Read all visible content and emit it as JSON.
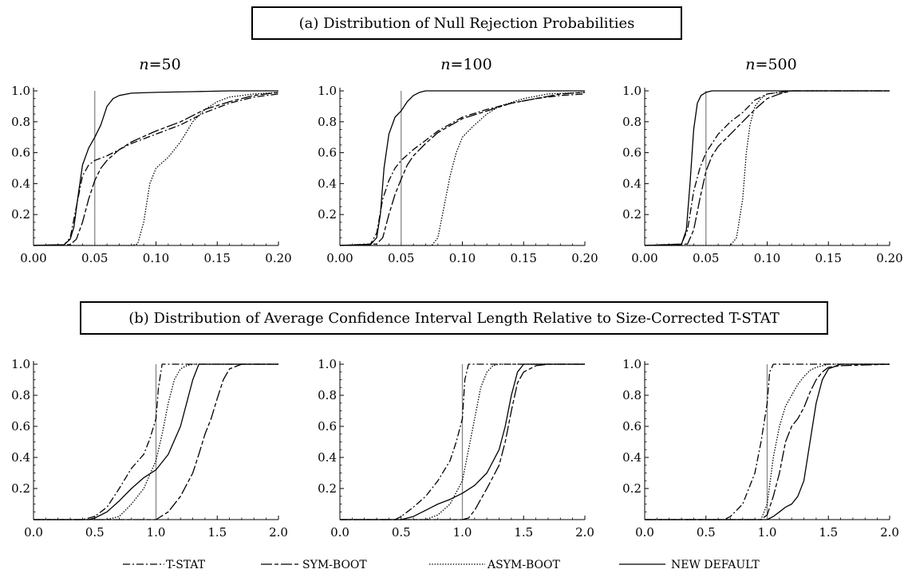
{
  "panel_a_title": "(a) Distribution of Null Rejection Probabilities",
  "panel_b_title": "(b) Distribution of Average Confidence Interval Length Relative to Size-Corrected T-STAT",
  "legend": [
    {
      "label": "T-STAT",
      "style": "dashdot"
    },
    {
      "label": "SYM-BOOT",
      "style": "longdash"
    },
    {
      "label": "ASYM-BOOT",
      "style": "dotted"
    },
    {
      "label": "NEW DEFAULT",
      "style": "solid"
    }
  ],
  "chart_data": [
    {
      "type": "line",
      "panel": "a",
      "title_var": "n",
      "title_value": "=50",
      "xlim": [
        0,
        0.2
      ],
      "ylim": [
        0,
        1
      ],
      "xticks": [
        "0.00",
        "0.05",
        "0.10",
        "0.15",
        "0.20"
      ],
      "yticks": [
        "0.2",
        "0.4",
        "0.6",
        "0.8",
        "1.0"
      ],
      "vline": 0.05,
      "series": [
        {
          "name": "NEW DEFAULT",
          "x": [
            0,
            0.025,
            0.03,
            0.033,
            0.036,
            0.04,
            0.045,
            0.05,
            0.055,
            0.06,
            0.065,
            0.07,
            0.08,
            0.1,
            0.13,
            0.16,
            0.2
          ],
          "y": [
            0,
            0.005,
            0.04,
            0.12,
            0.3,
            0.52,
            0.63,
            0.7,
            0.78,
            0.9,
            0.95,
            0.97,
            0.985,
            0.99,
            0.995,
            1,
            1
          ]
        },
        {
          "name": "T-STAT",
          "x": [
            0,
            0.025,
            0.03,
            0.035,
            0.04,
            0.045,
            0.05,
            0.06,
            0.07,
            0.08,
            0.1,
            0.12,
            0.14,
            0.16,
            0.18,
            0.2
          ],
          "y": [
            0,
            0.005,
            0.05,
            0.25,
            0.45,
            0.52,
            0.55,
            0.58,
            0.62,
            0.66,
            0.72,
            0.78,
            0.86,
            0.92,
            0.96,
            0.98
          ]
        },
        {
          "name": "SYM-BOOT",
          "x": [
            0,
            0.03,
            0.035,
            0.04,
            0.045,
            0.05,
            0.055,
            0.06,
            0.07,
            0.08,
            0.1,
            0.12,
            0.14,
            0.16,
            0.18,
            0.2
          ],
          "y": [
            0,
            0.005,
            0.04,
            0.15,
            0.3,
            0.42,
            0.5,
            0.55,
            0.62,
            0.67,
            0.74,
            0.8,
            0.88,
            0.93,
            0.97,
            0.99
          ]
        },
        {
          "name": "ASYM-BOOT",
          "x": [
            0,
            0.08,
            0.085,
            0.09,
            0.095,
            0.1,
            0.11,
            0.12,
            0.13,
            0.14,
            0.15,
            0.16,
            0.18,
            0.2
          ],
          "y": [
            0,
            0,
            0.01,
            0.15,
            0.4,
            0.5,
            0.57,
            0.67,
            0.8,
            0.88,
            0.93,
            0.96,
            0.98,
            0.99
          ]
        }
      ]
    },
    {
      "type": "line",
      "panel": "a",
      "title_var": "n",
      "title_value": "=100",
      "xlim": [
        0,
        0.2
      ],
      "ylim": [
        0,
        1
      ],
      "xticks": [
        "0.00",
        "0.05",
        "0.10",
        "0.15",
        "0.20"
      ],
      "yticks": [
        "0.2",
        "0.4",
        "0.6",
        "0.8",
        "1.0"
      ],
      "vline": 0.05,
      "series": [
        {
          "name": "NEW DEFAULT",
          "x": [
            0,
            0.025,
            0.03,
            0.033,
            0.036,
            0.04,
            0.045,
            0.05,
            0.055,
            0.06,
            0.065,
            0.07,
            0.08,
            0.1,
            0.2
          ],
          "y": [
            0,
            0.005,
            0.05,
            0.2,
            0.5,
            0.72,
            0.83,
            0.87,
            0.93,
            0.97,
            0.99,
            1,
            1,
            1,
            1
          ]
        },
        {
          "name": "T-STAT",
          "x": [
            0,
            0.025,
            0.03,
            0.035,
            0.04,
            0.045,
            0.05,
            0.06,
            0.07,
            0.08,
            0.1,
            0.12,
            0.14,
            0.16,
            0.18,
            0.2
          ],
          "y": [
            0,
            0.01,
            0.08,
            0.3,
            0.42,
            0.5,
            0.55,
            0.62,
            0.68,
            0.74,
            0.83,
            0.88,
            0.92,
            0.95,
            0.97,
            0.98
          ]
        },
        {
          "name": "SYM-BOOT",
          "x": [
            0,
            0.03,
            0.035,
            0.04,
            0.045,
            0.05,
            0.055,
            0.06,
            0.07,
            0.08,
            0.1,
            0.12,
            0.14,
            0.16,
            0.18,
            0.2
          ],
          "y": [
            0,
            0.01,
            0.05,
            0.2,
            0.33,
            0.43,
            0.52,
            0.58,
            0.66,
            0.73,
            0.82,
            0.87,
            0.92,
            0.95,
            0.98,
            0.99
          ]
        },
        {
          "name": "ASYM-BOOT",
          "x": [
            0,
            0.075,
            0.08,
            0.085,
            0.09,
            0.095,
            0.1,
            0.11,
            0.12,
            0.13,
            0.15,
            0.17,
            0.2
          ],
          "y": [
            0,
            0,
            0.05,
            0.25,
            0.45,
            0.6,
            0.7,
            0.78,
            0.85,
            0.9,
            0.95,
            0.98,
            0.99
          ]
        }
      ]
    },
    {
      "type": "line",
      "panel": "a",
      "title_var": "n",
      "title_value": "=500",
      "xlim": [
        0,
        0.2
      ],
      "ylim": [
        0,
        1
      ],
      "xticks": [
        "0.00",
        "0.05",
        "0.10",
        "0.15",
        "0.20"
      ],
      "yticks": [
        "0.2",
        "0.4",
        "0.6",
        "0.8",
        "1.0"
      ],
      "vline": 0.05,
      "series": [
        {
          "name": "NEW DEFAULT",
          "x": [
            0,
            0.03,
            0.034,
            0.037,
            0.04,
            0.043,
            0.046,
            0.05,
            0.055,
            0.06,
            0.2
          ],
          "y": [
            0,
            0.005,
            0.1,
            0.4,
            0.75,
            0.92,
            0.97,
            0.99,
            1,
            1,
            1
          ]
        },
        {
          "name": "T-STAT",
          "x": [
            0,
            0.03,
            0.035,
            0.04,
            0.045,
            0.05,
            0.055,
            0.06,
            0.07,
            0.08,
            0.09,
            0.1,
            0.11,
            0.12,
            0.2
          ],
          "y": [
            0,
            0.01,
            0.1,
            0.35,
            0.5,
            0.6,
            0.66,
            0.72,
            0.8,
            0.86,
            0.94,
            0.98,
            0.99,
            1,
            1
          ]
        },
        {
          "name": "SYM-BOOT",
          "x": [
            0,
            0.035,
            0.04,
            0.045,
            0.05,
            0.055,
            0.06,
            0.07,
            0.08,
            0.09,
            0.1,
            0.11,
            0.12,
            0.2
          ],
          "y": [
            0,
            0.01,
            0.1,
            0.3,
            0.48,
            0.58,
            0.64,
            0.72,
            0.8,
            0.88,
            0.95,
            0.98,
            1,
            1
          ]
        },
        {
          "name": "ASYM-BOOT",
          "x": [
            0,
            0.07,
            0.075,
            0.08,
            0.083,
            0.086,
            0.09,
            0.095,
            0.1,
            0.11,
            0.12,
            0.2
          ],
          "y": [
            0,
            0,
            0.05,
            0.3,
            0.6,
            0.78,
            0.9,
            0.95,
            0.98,
            0.99,
            1,
            1
          ]
        }
      ]
    },
    {
      "type": "line",
      "panel": "b",
      "xlim": [
        0,
        2
      ],
      "ylim": [
        0,
        1
      ],
      "xticks": [
        "0.0",
        "0.5",
        "1.0",
        "1.5",
        "2.0"
      ],
      "yticks": [
        "0.2",
        "0.4",
        "0.6",
        "0.8",
        "1.0"
      ],
      "vline": 1.0,
      "series": [
        {
          "name": "T-STAT",
          "x": [
            0,
            0.4,
            0.5,
            0.6,
            0.7,
            0.8,
            0.9,
            0.95,
            1.0,
            1.02,
            1.05,
            2.0
          ],
          "y": [
            0,
            0,
            0.02,
            0.08,
            0.2,
            0.33,
            0.42,
            0.52,
            0.65,
            0.85,
            1,
            1
          ]
        },
        {
          "name": "SYM-BOOT",
          "x": [
            0,
            1.0,
            1.1,
            1.2,
            1.3,
            1.35,
            1.4,
            1.45,
            1.5,
            1.55,
            1.6,
            1.7,
            2.0
          ],
          "y": [
            0,
            0,
            0.05,
            0.15,
            0.3,
            0.42,
            0.55,
            0.65,
            0.78,
            0.9,
            0.97,
            1,
            1
          ]
        },
        {
          "name": "ASYM-BOOT",
          "x": [
            0,
            0.6,
            0.7,
            0.8,
            0.9,
            1.0,
            1.05,
            1.1,
            1.15,
            1.2,
            1.25,
            1.3,
            2.0
          ],
          "y": [
            0,
            0,
            0.02,
            0.1,
            0.2,
            0.38,
            0.55,
            0.75,
            0.9,
            0.97,
            0.99,
            1,
            1
          ]
        },
        {
          "name": "NEW DEFAULT",
          "x": [
            0,
            0.45,
            0.5,
            0.6,
            0.7,
            0.8,
            0.9,
            1.0,
            1.1,
            1.2,
            1.25,
            1.3,
            1.35,
            2.0
          ],
          "y": [
            0,
            0,
            0.01,
            0.05,
            0.12,
            0.2,
            0.27,
            0.32,
            0.42,
            0.6,
            0.75,
            0.9,
            1,
            1
          ]
        }
      ]
    },
    {
      "type": "line",
      "panel": "b",
      "xlim": [
        0,
        2
      ],
      "ylim": [
        0,
        1
      ],
      "xticks": [
        "0.0",
        "0.5",
        "1.0",
        "1.5",
        "2.0"
      ],
      "yticks": [
        "0.2",
        "0.4",
        "0.6",
        "0.8",
        "1.0"
      ],
      "vline": 1.0,
      "series": [
        {
          "name": "T-STAT",
          "x": [
            0,
            0.45,
            0.5,
            0.6,
            0.7,
            0.8,
            0.9,
            0.95,
            1.0,
            1.02,
            1.05,
            2.0
          ],
          "y": [
            0,
            0,
            0.02,
            0.08,
            0.15,
            0.25,
            0.38,
            0.5,
            0.65,
            0.9,
            1,
            1
          ]
        },
        {
          "name": "SYM-BOOT",
          "x": [
            0,
            1.0,
            1.05,
            1.1,
            1.2,
            1.3,
            1.35,
            1.4,
            1.45,
            1.5,
            1.55,
            1.6,
            1.7,
            2.0
          ],
          "y": [
            0,
            0,
            0.01,
            0.06,
            0.2,
            0.35,
            0.5,
            0.7,
            0.88,
            0.95,
            0.97,
            0.99,
            1,
            1
          ]
        },
        {
          "name": "ASYM-BOOT",
          "x": [
            0,
            0.7,
            0.8,
            0.9,
            1.0,
            1.05,
            1.1,
            1.15,
            1.2,
            1.25,
            1.3,
            2.0
          ],
          "y": [
            0,
            0,
            0.03,
            0.1,
            0.25,
            0.45,
            0.65,
            0.85,
            0.95,
            0.99,
            1,
            1
          ]
        },
        {
          "name": "NEW DEFAULT",
          "x": [
            0,
            0.5,
            0.6,
            0.7,
            0.8,
            0.9,
            1.0,
            1.1,
            1.2,
            1.3,
            1.35,
            1.4,
            1.45,
            1.5,
            2.0
          ],
          "y": [
            0,
            0,
            0.02,
            0.06,
            0.1,
            0.13,
            0.17,
            0.22,
            0.3,
            0.45,
            0.6,
            0.8,
            0.95,
            1,
            1
          ]
        }
      ]
    },
    {
      "type": "line",
      "panel": "b",
      "xlim": [
        0,
        2
      ],
      "ylim": [
        0,
        1
      ],
      "xticks": [
        "0.0",
        "0.5",
        "1.0",
        "1.5",
        "2.0"
      ],
      "yticks": [
        "0.2",
        "0.4",
        "0.6",
        "0.8",
        "1.0"
      ],
      "vline": 1.0,
      "series": [
        {
          "name": "T-STAT",
          "x": [
            0,
            0.65,
            0.7,
            0.8,
            0.85,
            0.9,
            0.95,
            1.0,
            1.02,
            1.05,
            2.0
          ],
          "y": [
            0,
            0,
            0.02,
            0.1,
            0.2,
            0.3,
            0.5,
            0.75,
            0.95,
            1,
            1
          ]
        },
        {
          "name": "SYM-BOOT",
          "x": [
            0,
            0.95,
            1.0,
            1.05,
            1.1,
            1.15,
            1.2,
            1.25,
            1.3,
            1.35,
            1.4,
            1.45,
            1.5,
            1.6,
            2.0
          ],
          "y": [
            0,
            0,
            0.03,
            0.15,
            0.3,
            0.5,
            0.6,
            0.65,
            0.72,
            0.82,
            0.9,
            0.95,
            0.98,
            0.99,
            1
          ]
        },
        {
          "name": "ASYM-BOOT",
          "x": [
            0,
            0.95,
            1.0,
            1.05,
            1.1,
            1.15,
            1.2,
            1.25,
            1.3,
            1.35,
            1.4,
            1.5,
            2.0
          ],
          "y": [
            0,
            0,
            0.1,
            0.4,
            0.6,
            0.73,
            0.8,
            0.87,
            0.92,
            0.96,
            0.98,
            1,
            1
          ]
        },
        {
          "name": "NEW DEFAULT",
          "x": [
            0,
            1.0,
            1.05,
            1.1,
            1.15,
            1.2,
            1.25,
            1.3,
            1.35,
            1.4,
            1.45,
            1.5,
            1.6,
            2.0
          ],
          "y": [
            0,
            0,
            0.02,
            0.05,
            0.08,
            0.1,
            0.15,
            0.25,
            0.5,
            0.75,
            0.9,
            0.97,
            1,
            1
          ]
        }
      ]
    }
  ]
}
